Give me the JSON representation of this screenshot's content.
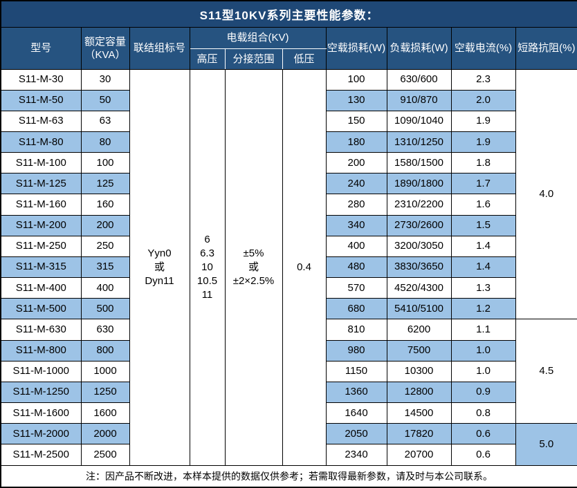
{
  "title": "S11型10KV系列主要性能参数：",
  "header": {
    "model": "型号",
    "capacity": "额定容量\n（KVA）",
    "connection": "联结组标号",
    "load_combo": "电载组合(KV)",
    "hv": "高压",
    "tap_range": "分接范围",
    "lv": "低压",
    "no_load_loss": "空载损耗(W)",
    "load_loss": "负载损耗(W)",
    "no_load_current": "空载电流(%)",
    "impedance": "短路抗阻(%)"
  },
  "merged_cells": {
    "connection": "Yyn0\n或\nDyn11",
    "hv": "6\n6.3\n10\n10.5\n11",
    "tap_range": "±5%\n或\n±2×2.5%",
    "lv": "0.4"
  },
  "rows": [
    {
      "model": "S11-M-30",
      "capacity": "30",
      "no_load_loss": "100",
      "load_loss": "630/600",
      "no_load_current": "2.3"
    },
    {
      "model": "S11-M-50",
      "capacity": "50",
      "no_load_loss": "130",
      "load_loss": "910/870",
      "no_load_current": "2.0"
    },
    {
      "model": "S11-M-63",
      "capacity": "63",
      "no_load_loss": "150",
      "load_loss": "1090/1040",
      "no_load_current": "1.9"
    },
    {
      "model": "S11-M-80",
      "capacity": "80",
      "no_load_loss": "180",
      "load_loss": "1310/1250",
      "no_load_current": "1.9"
    },
    {
      "model": "S11-M-100",
      "capacity": "100",
      "no_load_loss": "200",
      "load_loss": "1580/1500",
      "no_load_current": "1.8"
    },
    {
      "model": "S11-M-125",
      "capacity": "125",
      "no_load_loss": "240",
      "load_loss": "1890/1800",
      "no_load_current": "1.7"
    },
    {
      "model": "S11-M-160",
      "capacity": "160",
      "no_load_loss": "280",
      "load_loss": "2310/2200",
      "no_load_current": "1.6"
    },
    {
      "model": "S11-M-200",
      "capacity": "200",
      "no_load_loss": "340",
      "load_loss": "2730/2600",
      "no_load_current": "1.5"
    },
    {
      "model": "S11-M-250",
      "capacity": "250",
      "no_load_loss": "400",
      "load_loss": "3200/3050",
      "no_load_current": "1.4"
    },
    {
      "model": "S11-M-315",
      "capacity": "315",
      "no_load_loss": "480",
      "load_loss": "3830/3650",
      "no_load_current": "1.4"
    },
    {
      "model": "S11-M-400",
      "capacity": "400",
      "no_load_loss": "570",
      "load_loss": "4520/4300",
      "no_load_current": "1.3"
    },
    {
      "model": "S11-M-500",
      "capacity": "500",
      "no_load_loss": "680",
      "load_loss": "5410/5100",
      "no_load_current": "1.2"
    },
    {
      "model": "S11-M-630",
      "capacity": "630",
      "no_load_loss": "810",
      "load_loss": "6200",
      "no_load_current": "1.1"
    },
    {
      "model": "S11-M-800",
      "capacity": "800",
      "no_load_loss": "980",
      "load_loss": "7500",
      "no_load_current": "1.0"
    },
    {
      "model": "S11-M-1000",
      "capacity": "1000",
      "no_load_loss": "1150",
      "load_loss": "10300",
      "no_load_current": "1.0"
    },
    {
      "model": "S11-M-1250",
      "capacity": "1250",
      "no_load_loss": "1360",
      "load_loss": "12800",
      "no_load_current": "0.9"
    },
    {
      "model": "S11-M-1600",
      "capacity": "1600",
      "no_load_loss": "1640",
      "load_loss": "14500",
      "no_load_current": "0.8"
    },
    {
      "model": "S11-M-2000",
      "capacity": "2000",
      "no_load_loss": "2050",
      "load_loss": "17820",
      "no_load_current": "0.6"
    },
    {
      "model": "S11-M-2500",
      "capacity": "2500",
      "no_load_loss": "2340",
      "load_loss": "20700",
      "no_load_current": "0.6"
    }
  ],
  "impedance_groups": [
    {
      "value": "4.0",
      "start": 0,
      "span": 12
    },
    {
      "value": "4.5",
      "start": 12,
      "span": 5
    },
    {
      "value": "5.0",
      "start": 17,
      "span": 2
    }
  ],
  "blue_row_indices": [
    1,
    3,
    5,
    7,
    9,
    11,
    13,
    15,
    17
  ],
  "footer_note": "注：因产品不断改进，本样本提供的数据仅供参考；若需取得最新参数，请及时与本公司联系。",
  "colors": {
    "title_bg": "#1F4876",
    "header_bg": "#265380",
    "header_text": "#FFFFFF",
    "alt_row_bg": "#9DC3E6",
    "row_bg": "#FFFFFF",
    "border": "#000000",
    "body_text": "#000000"
  }
}
